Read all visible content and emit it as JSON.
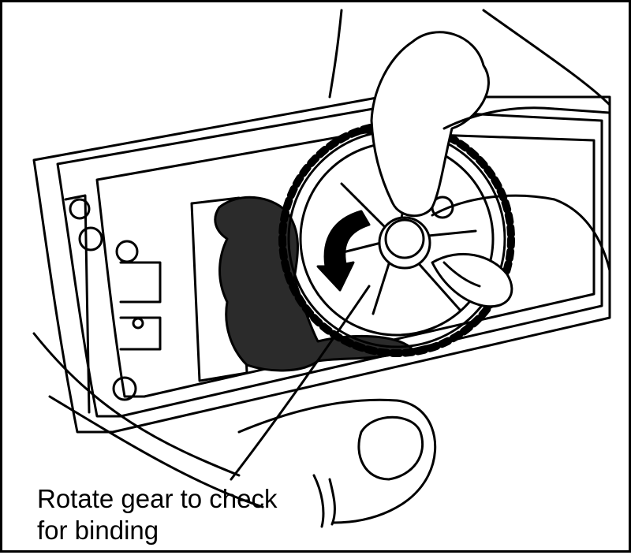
{
  "caption": {
    "line1": "Rotate gear to check",
    "line2": "for binding"
  },
  "colors": {
    "ink": "#000000",
    "paper": "#ffffff",
    "grease": "#2b2b2b"
  },
  "icons": [
    "rotation-arrow-icon"
  ]
}
